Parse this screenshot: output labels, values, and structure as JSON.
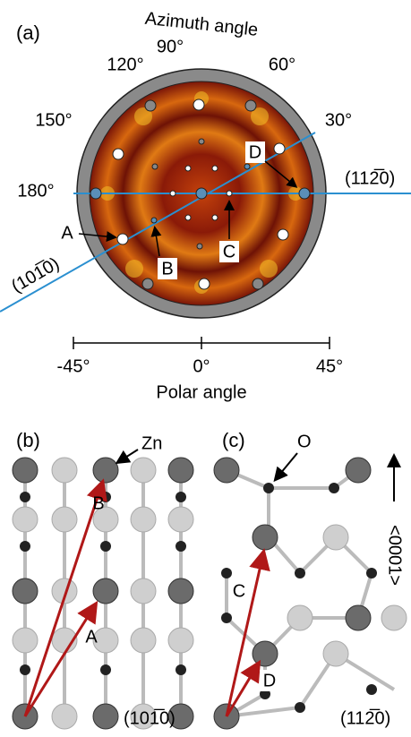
{
  "panel_a": {
    "label": "(a)",
    "azimuth_title": "Azimuth angle",
    "azimuth_ticks": [
      "90°",
      "60°",
      "30°",
      "120°",
      "150°",
      "180°"
    ],
    "planes": [
      "(112̅0)",
      "(101̅0)"
    ],
    "points": [
      "A",
      "B",
      "C",
      "D"
    ],
    "polar_ticks": [
      "-45°",
      "0°",
      "45°"
    ],
    "polar_title": "Polar angle"
  },
  "panel_b": {
    "label": "(b)",
    "atom": "Zn",
    "vectors": [
      "B",
      "A"
    ],
    "plane": "(101̅0)"
  },
  "panel_c": {
    "label": "(c)",
    "atom": "O",
    "vectors": [
      "C",
      "D"
    ],
    "direction": "<0001>",
    "plane": "(112̅0)"
  }
}
